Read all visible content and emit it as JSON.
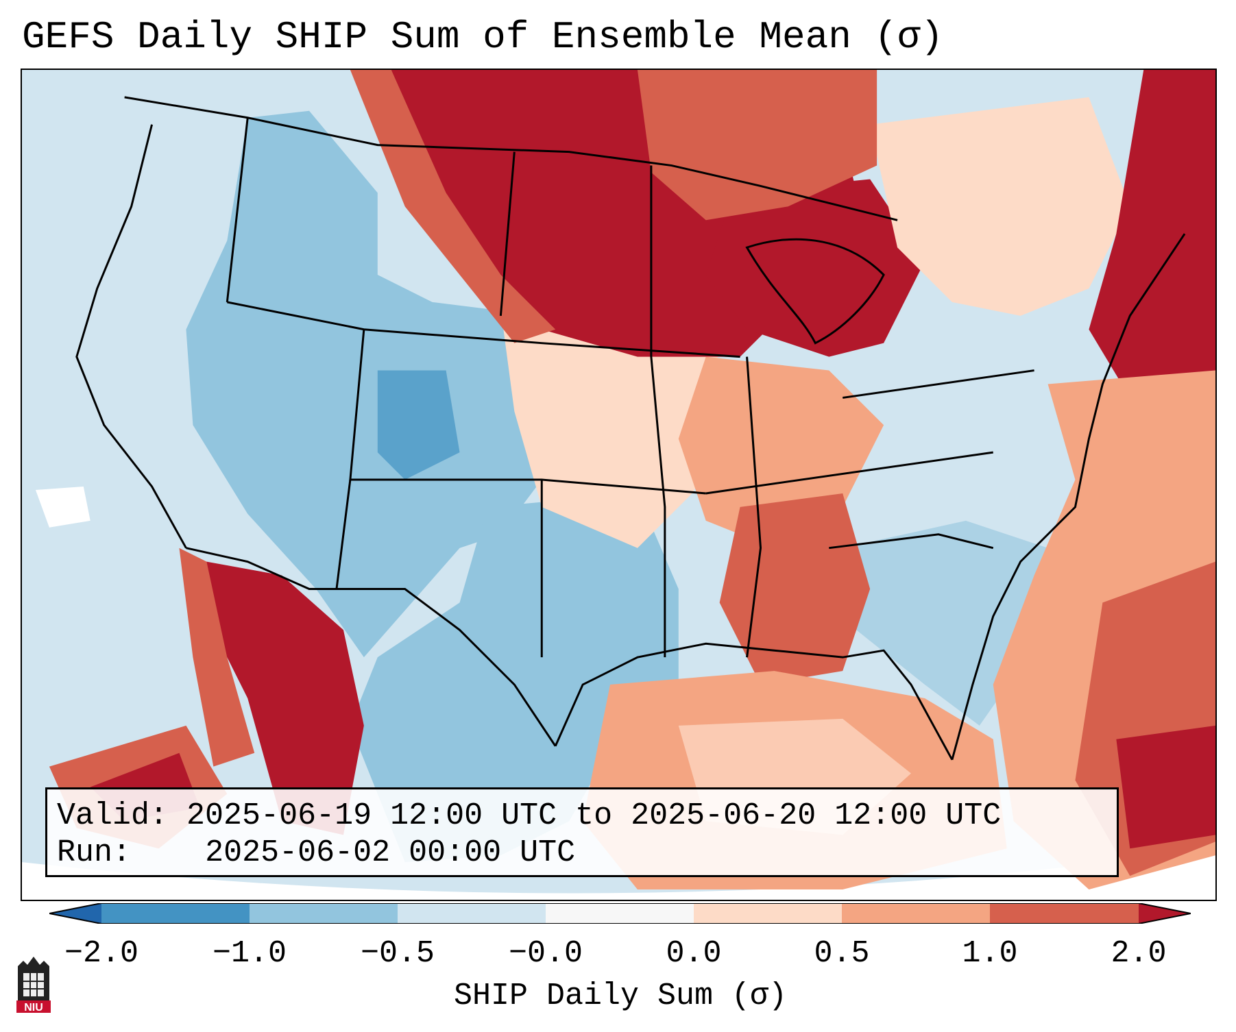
{
  "title": "GEFS Daily SHIP Sum of Ensemble Mean (σ)",
  "info": {
    "valid_label": "Valid:",
    "valid_value": "2025-06-19 12:00 UTC to 2025-06-20 12:00 UTC",
    "run_label": "Run:",
    "run_value": "2025-06-02 00:00 UTC"
  },
  "colorbar": {
    "label": "SHIP Daily Sum (σ)",
    "ticks": [
      "−2.0",
      "−1.0",
      "−0.5",
      "−0.0",
      "0.0",
      "0.5",
      "1.0",
      "2.0"
    ],
    "colors": {
      "under": "#2166ac",
      "b1": "#4393c3",
      "b2": "#92c5de",
      "b3": "#d1e5f0",
      "b4": "#f7f7f7",
      "b5": "#fddbc7",
      "b6": "#f4a582",
      "b7": "#d6604d",
      "over": "#b2182b"
    }
  },
  "logo": {
    "text": "NIU",
    "color": "#c8102e"
  },
  "map_regions": [
    {
      "name": "pacific-ocean",
      "category": "slightly-below",
      "color": "#d1e5f0"
    },
    {
      "name": "western-us",
      "category": "below",
      "color": "#92c5de"
    },
    {
      "name": "northern-plains",
      "category": "well-above",
      "color": "#b2182b"
    },
    {
      "name": "great-lakes",
      "category": "well-above",
      "color": "#b2182b"
    },
    {
      "name": "new-england",
      "category": "well-above",
      "color": "#b2182b"
    },
    {
      "name": "texas",
      "category": "below",
      "color": "#92c5de"
    },
    {
      "name": "gulf-of-mexico",
      "category": "above",
      "color": "#f4a582"
    },
    {
      "name": "atlantic-ocean",
      "category": "above",
      "color": "#d6604d"
    },
    {
      "name": "southeast-us",
      "category": "slightly-below",
      "color": "#d1e5f0"
    },
    {
      "name": "mexico-west",
      "category": "well-above",
      "color": "#b2182b"
    }
  ]
}
